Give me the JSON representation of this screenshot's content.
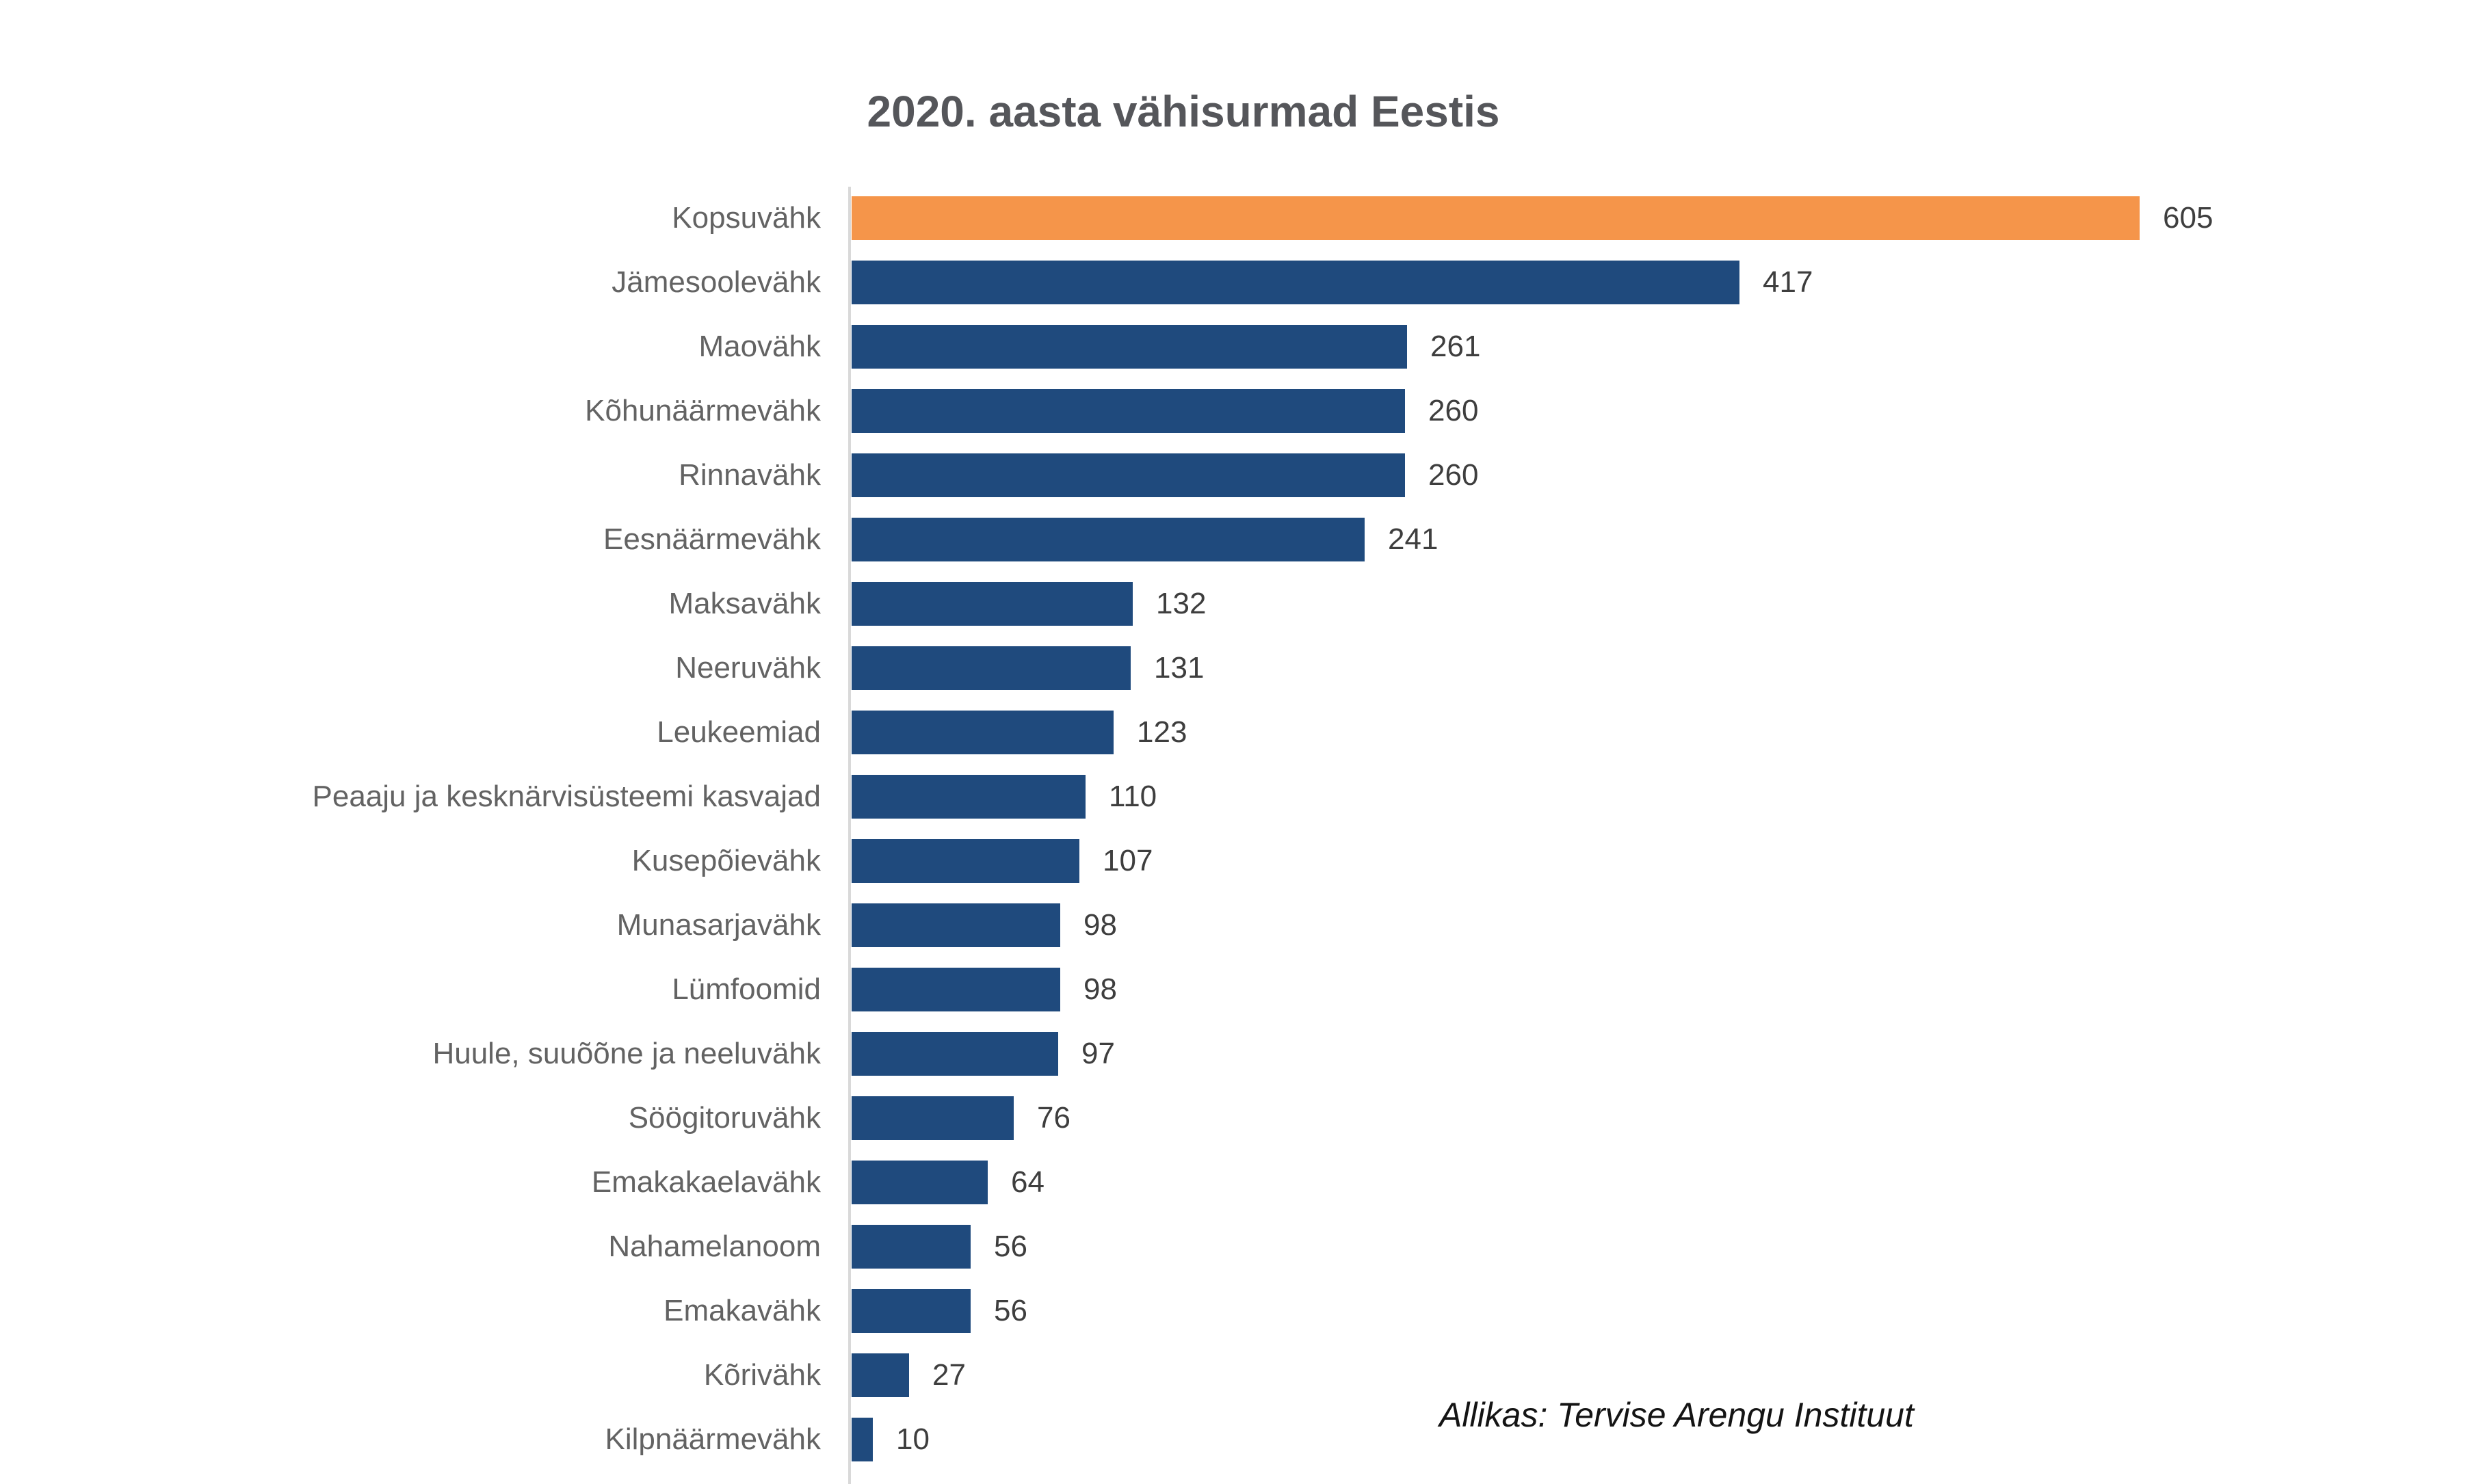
{
  "title": "2020. aasta vähisurmad Eestis",
  "source": "Allikas: Tervise Arengu Instituut",
  "colors": {
    "highlight_bar": "#f5954a",
    "default_bar": "#1f4a7d",
    "axis_line": "#d9d9d9",
    "title_text": "#55565a",
    "category_text": "#636363",
    "value_text": "#3e3e3e"
  },
  "chart_data": {
    "type": "bar",
    "orientation": "horizontal",
    "title": "2020. aasta vähisurmad Eestis",
    "source": "Allikas: Tervise Arengu Instituut",
    "categories": [
      "Kopsuvähk",
      "Jämesoolevähk",
      "Maovähk",
      "Kõhunäärmevähk",
      "Rinnavähk",
      "Eesnäärmevähk",
      "Maksavähk",
      "Neeruvähk",
      "Leukeemiad",
      "Peaaju ja kesknärvisüsteemi kasvajad",
      "Kusepõievähk",
      "Munasarjavähk",
      "Lümfoomid",
      "Huule, suuõõne ja neeluvähk",
      "Söögitoruvähk",
      "Emakakaelavähk",
      "Nahamelanoom",
      "Emakavähk",
      "Kõrivähk",
      "Kilpnäärmevähk"
    ],
    "values": [
      605,
      417,
      261,
      260,
      260,
      241,
      132,
      131,
      123,
      110,
      107,
      98,
      98,
      97,
      76,
      64,
      56,
      56,
      27,
      10
    ],
    "highlight_index": 0,
    "xlim": [
      0,
      605
    ],
    "grid": false,
    "legend": false,
    "value_labels": "end-of-bar"
  }
}
